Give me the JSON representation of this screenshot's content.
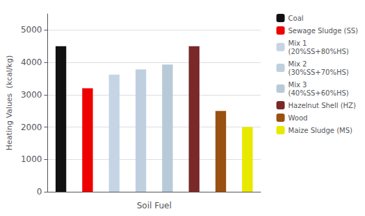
{
  "chart_data": {
    "type": "bar",
    "xlabel": "Soil Fuel",
    "ylabel": "Heating Values  (kcal/kg)",
    "categories": [
      "Coal",
      "Sewage Sludge (SS)",
      "Mix 1\n(20%SS+80%HS)",
      "Mix 2\n(30%SS+70%HS)",
      "Mix 3\n(40%SS+60%HS)",
      "Hazelnut Shell (HZ)",
      "Wood",
      "Maize Sludge (MS)"
    ],
    "values": [
      4500,
      3200,
      3620,
      3780,
      3930,
      4500,
      2500,
      2000
    ],
    "colors": [
      "#111111",
      "#ee0000",
      "#c5d5e5",
      "#c0cfe0",
      "#b8cad8",
      "#7a2828",
      "#9a5010",
      "#e8e800"
    ],
    "ylim": [
      0,
      5500
    ],
    "yticks": [
      0,
      1000,
      2000,
      3000,
      4000,
      5000
    ],
    "grid": true,
    "legend": "right",
    "tick_labels": "y"
  }
}
